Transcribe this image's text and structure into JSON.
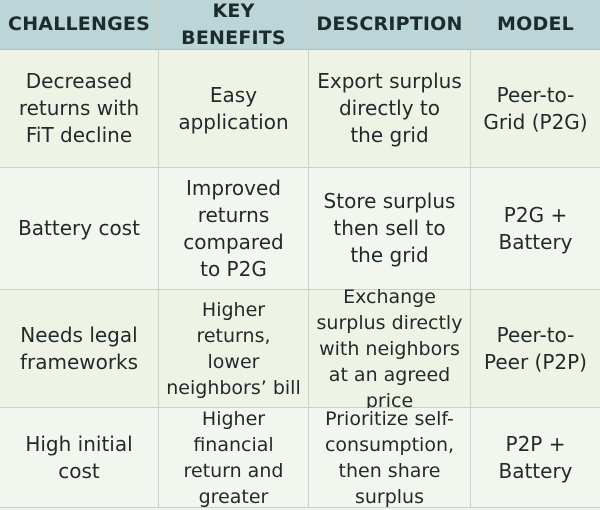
{
  "headers": [
    "CHALLENGES",
    "KEY BENEFITS",
    "DESCRIPTION",
    "MODEL"
  ],
  "rows": [
    {
      "challenge": "Decreased\nreturns with\nFiT decline",
      "benefit": "Easy\napplication",
      "description": "Export surplus\ndirectly to\nthe grid",
      "model": "Peer-to-\nGrid (P2G)"
    },
    {
      "challenge": "Battery cost",
      "benefit": "Improved\nreturns\ncompared\nto P2G",
      "description": "Store surplus\nthen sell to\nthe grid",
      "model": "P2G +\nBattery"
    },
    {
      "challenge": "Needs legal\nframeworks",
      "benefit": "Higher returns,\nlower\nneighbors’ bill",
      "description": "Exchange\nsurplus directly\nwith neighbors\nat an agreed price",
      "model": "Peer-to-\nPeer (P2P)"
    },
    {
      "challenge": "High initial\ncost",
      "benefit": "Higher financial\nreturn and\ngreater",
      "description": "Prioritize self-\nconsumption,\nthen share surplus",
      "model": "P2P +\nBattery"
    }
  ]
}
